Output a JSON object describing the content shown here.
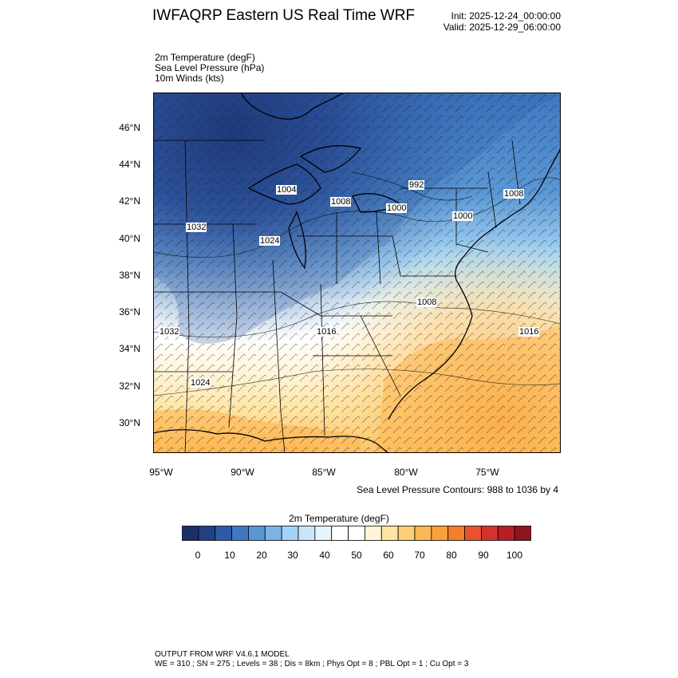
{
  "header": {
    "title": "IWFAQRP Eastern US Real Time WRF",
    "init": "Init: 2025-12-24_00:00:00",
    "valid": "Valid: 2025-12-29_06:00:00"
  },
  "fields": [
    "2m Temperature   (degF)",
    "Sea Level Pressure   (hPa)",
    "10m Winds   (kts)"
  ],
  "axes": {
    "lat_labels": [
      "46°N",
      "44°N",
      "42°N",
      "40°N",
      "38°N",
      "36°N",
      "34°N",
      "32°N",
      "30°N"
    ],
    "lon_labels": [
      "95°W",
      "90°W",
      "85°W",
      "80°W",
      "75°W"
    ]
  },
  "pressure_labels": [
    "1004",
    "1008",
    "992",
    "1000",
    "1000",
    "1008",
    "1032",
    "1024",
    "1008",
    "1032",
    "1016",
    "1016",
    "1024"
  ],
  "slp_note": "Sea Level Pressure Contours: 988 to 1036 by 4",
  "colorbar": {
    "title": "2m Temperature  (degF)",
    "ticks": [
      "0",
      "10",
      "20",
      "30",
      "40",
      "50",
      "60",
      "70",
      "80",
      "90",
      "100"
    ],
    "colors": [
      "#1b2f6b",
      "#233f88",
      "#2c5ba8",
      "#3f78c2",
      "#5a97d4",
      "#7cb4e6",
      "#a3d3f4",
      "#c9e6f9",
      "#e6f4fb",
      "#ffffff",
      "#ffffff",
      "#fff4d9",
      "#ffe5a3",
      "#fece78",
      "#fdb855",
      "#f9a13c",
      "#f47e2e",
      "#e8532c",
      "#d4322b",
      "#b91e24",
      "#8e141d"
    ]
  },
  "footer": {
    "line1": "OUTPUT FROM WRF V4.6.1 MODEL",
    "line2": "WE = 310 ; SN = 275 ; Levels = 38 ; Dis = 8km ; Phys Opt = 8 ; PBL Opt = 1 ; Cu Opt = 3"
  }
}
